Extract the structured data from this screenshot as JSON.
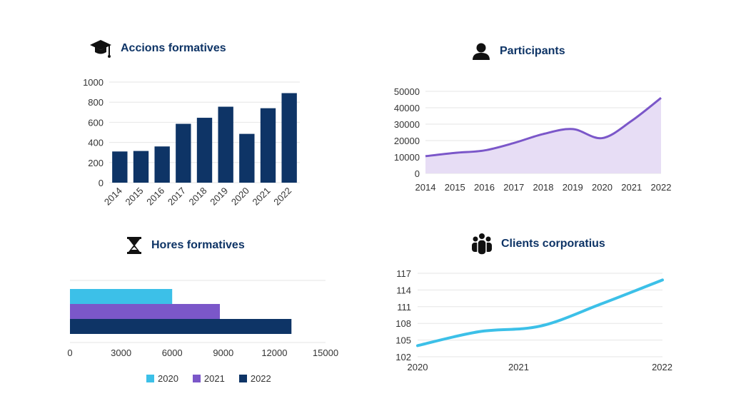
{
  "colors": {
    "navy": "#0e3466",
    "purple": "#7b57c9",
    "purple_fill": "#e7ddf5",
    "cyan": "#3cc0e8",
    "grid": "#e6e6e6",
    "axis_text": "#333333"
  },
  "panels": {
    "accions": {
      "title": "Accions formatives",
      "icon": "graduation-cap-icon"
    },
    "participants": {
      "title": "Participants",
      "icon": "person-icon"
    },
    "hores": {
      "title": "Hores formatives",
      "icon": "hourglass-icon"
    },
    "clients": {
      "title": "Clients corporatius",
      "icon": "people-group-icon"
    }
  },
  "chart_data": [
    {
      "id": "accions",
      "type": "bar",
      "title": "Accions formatives",
      "categories": [
        "2014",
        "2015",
        "2016",
        "2017",
        "2018",
        "2019",
        "2020",
        "2021",
        "2022"
      ],
      "values": [
        310,
        315,
        360,
        585,
        645,
        755,
        485,
        740,
        890
      ],
      "ylim": [
        0,
        1000
      ],
      "yticks": [
        0,
        200,
        400,
        600,
        800,
        1000
      ],
      "xlabel": "",
      "ylabel": "",
      "grid": true
    },
    {
      "id": "participants",
      "type": "area",
      "title": "Participants",
      "categories": [
        "2014",
        "2015",
        "2016",
        "2017",
        "2018",
        "2019",
        "2020",
        "2021",
        "2022"
      ],
      "values": [
        10500,
        12500,
        14000,
        18500,
        24000,
        27000,
        21500,
        32000,
        46000
      ],
      "ylim": [
        0,
        50000
      ],
      "yticks": [
        0,
        10000,
        20000,
        30000,
        40000,
        50000
      ],
      "xlabel": "",
      "ylabel": "",
      "grid": true
    },
    {
      "id": "hores",
      "type": "bar",
      "orientation": "horizontal",
      "title": "Hores formatives",
      "series": [
        {
          "name": "2020",
          "values": [
            6000
          ]
        },
        {
          "name": "2021",
          "values": [
            8800
          ]
        },
        {
          "name": "2022",
          "values": [
            13000
          ]
        }
      ],
      "xlim": [
        0,
        15000
      ],
      "xticks": [
        0,
        3000,
        6000,
        9000,
        12000,
        15000
      ],
      "legend": [
        "2020",
        "2021",
        "2022"
      ],
      "legend_position": "bottom"
    },
    {
      "id": "clients",
      "type": "line",
      "title": "Clients corporatius",
      "categories": [
        "2020",
        "2021",
        "2022"
      ],
      "x": [
        2020,
        2020.5,
        2021,
        2021.5,
        2022
      ],
      "values": [
        104,
        106.5,
        107.5,
        111.5,
        115.8
      ],
      "ylim": [
        102,
        117
      ],
      "yticks": [
        102,
        105,
        108,
        111,
        114,
        117
      ],
      "xlabel": "",
      "ylabel": "",
      "grid": true
    }
  ]
}
